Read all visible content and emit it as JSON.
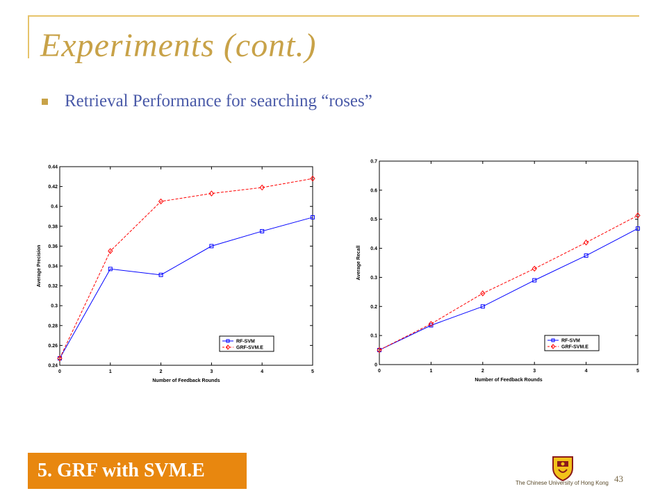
{
  "slide": {
    "title": "Experiments (cont.)",
    "bullet": "Retrieval Performance for searching “roses”",
    "footer_label": "5. GRF with SVM.E",
    "university": "The Chinese University of Hong Kong",
    "page_number": "43",
    "accent_color": "#c8a248",
    "footer_color": "#e8870f",
    "bullet_text_color": "#4a5aa8"
  },
  "chart_data": [
    {
      "type": "line",
      "title": "",
      "xlabel": "Number of Feedback Rounds",
      "ylabel": "Average Precision",
      "xlim": [
        0,
        5
      ],
      "ylim": [
        0.24,
        0.44
      ],
      "xticks": [
        0,
        1,
        2,
        3,
        4,
        5
      ],
      "yticks": [
        0.24,
        0.26,
        0.28,
        0.3,
        0.32,
        0.34,
        0.36,
        0.38,
        0.4,
        0.42,
        0.44
      ],
      "ytick_labels": [
        "0.24",
        "0.26",
        "0.28",
        "0.3",
        "0.32",
        "0.34",
        "0.36",
        "0.38",
        "0.4",
        "0.42",
        "0.44"
      ],
      "x": [
        0,
        1,
        2,
        3,
        4,
        5
      ],
      "series": [
        {
          "name": "RF-SVM",
          "values": [
            0.247,
            0.337,
            0.331,
            0.36,
            0.375,
            0.389
          ],
          "color": "#0000ff",
          "marker": "square",
          "dash": "solid"
        },
        {
          "name": "GRF-SVM.E",
          "values": [
            0.247,
            0.355,
            0.405,
            0.413,
            0.419,
            0.428
          ],
          "color": "#ff0000",
          "marker": "diamond",
          "dash": "dashed"
        }
      ],
      "legend_position": "bottom-right",
      "grid": false
    },
    {
      "type": "line",
      "title": "",
      "xlabel": "Number of Feedback Rounds",
      "ylabel": "Average Recall",
      "xlim": [
        0,
        5
      ],
      "ylim": [
        0,
        0.7
      ],
      "xticks": [
        0,
        1,
        2,
        3,
        4,
        5
      ],
      "yticks": [
        0,
        0.1,
        0.2,
        0.3,
        0.4,
        0.5,
        0.6,
        0.7
      ],
      "ytick_labels": [
        "0",
        "0.1",
        "0.2",
        "0.3",
        "0.4",
        "0.5",
        "0.6",
        "0.7"
      ],
      "x": [
        0,
        1,
        2,
        3,
        4,
        5
      ],
      "series": [
        {
          "name": "RF-SVM",
          "values": [
            0.05,
            0.135,
            0.2,
            0.29,
            0.375,
            0.468
          ],
          "color": "#0000ff",
          "marker": "square",
          "dash": "solid"
        },
        {
          "name": "GRF-SVM.E",
          "values": [
            0.05,
            0.14,
            0.245,
            0.33,
            0.42,
            0.513
          ],
          "color": "#ff0000",
          "marker": "diamond",
          "dash": "dashed"
        }
      ],
      "legend_position": "bottom-right",
      "grid": false
    }
  ]
}
